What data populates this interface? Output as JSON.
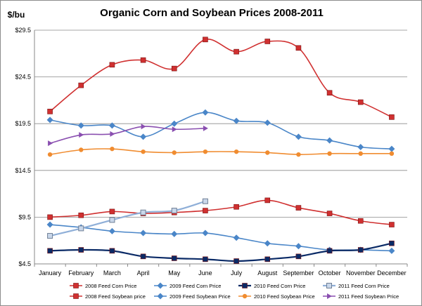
{
  "chart_data": {
    "type": "line",
    "title": "Organic Corn and Soybean Prices 2008-2011",
    "ylabel": "$/bu",
    "xlabel": "",
    "categories": [
      "January",
      "February",
      "March",
      "April",
      "May",
      "June",
      "July",
      "August",
      "September",
      "October",
      "November",
      "December"
    ],
    "yticks": [
      "$29.5",
      "$24.5",
      "$19.5",
      "$14.5",
      "$9.5",
      "$4.5"
    ],
    "ytick_values": [
      29.5,
      24.5,
      19.5,
      14.5,
      9.5,
      4.5
    ],
    "ylim": [
      4.5,
      29.5
    ],
    "grid": "horizontal",
    "legend_position": "bottom",
    "series": [
      {
        "name": "2008 Feed Corn Price",
        "color": "#d03030",
        "marker": "square",
        "line_width": 1.6,
        "values": [
          9.5,
          9.7,
          10.1,
          9.9,
          10.0,
          10.2,
          10.6,
          11.3,
          10.5,
          9.9,
          9.1,
          8.7
        ]
      },
      {
        "name": "2009 Feed Corn Price",
        "color": "#4a86c8",
        "marker": "diamond",
        "line_width": 1.6,
        "values": [
          8.7,
          8.4,
          8.0,
          7.8,
          7.7,
          7.8,
          7.3,
          6.7,
          6.4,
          6.0,
          6.0,
          5.9
        ]
      },
      {
        "name": "2010 Feed Corn Price",
        "color": "#0a2a66",
        "marker": "square",
        "line_width": 2.2,
        "values": [
          5.9,
          6.0,
          5.9,
          5.3,
          5.1,
          5.0,
          4.8,
          5.0,
          5.3,
          5.9,
          6.0,
          6.7
        ]
      },
      {
        "name": "2011 Feed Corn Price",
        "color": "#8fafd8",
        "marker": "square-outline",
        "line_width": 2.2,
        "values": [
          7.5,
          8.3,
          9.2,
          10.0,
          10.2,
          11.2,
          null,
          null,
          null,
          null,
          null,
          null
        ]
      },
      {
        "name": "2008 Feed Soybean price",
        "color": "#d03030",
        "marker": "square",
        "line_width": 1.6,
        "values": [
          20.8,
          23.6,
          25.8,
          26.3,
          25.4,
          28.5,
          27.2,
          28.3,
          27.6,
          22.8,
          21.8,
          20.2
        ]
      },
      {
        "name": "2009 Feed Soybean Price",
        "color": "#4a86c8",
        "marker": "diamond",
        "line_width": 1.6,
        "values": [
          19.9,
          19.3,
          19.3,
          18.1,
          19.5,
          20.7,
          19.8,
          19.6,
          18.1,
          17.7,
          17.0,
          16.8
        ]
      },
      {
        "name": "2010 Feed Soybean Price",
        "color": "#f08c30",
        "marker": "circle",
        "line_width": 1.6,
        "values": [
          16.2,
          16.7,
          16.8,
          16.5,
          16.4,
          16.5,
          16.5,
          16.4,
          16.2,
          16.3,
          16.3,
          16.3
        ]
      },
      {
        "name": "2011 Feed Soybean Price",
        "color": "#8a4fb0",
        "marker": "arrow",
        "line_width": 1.6,
        "values": [
          17.4,
          18.3,
          18.4,
          19.2,
          18.9,
          19.0,
          null,
          null,
          null,
          null,
          null,
          null
        ]
      }
    ]
  }
}
